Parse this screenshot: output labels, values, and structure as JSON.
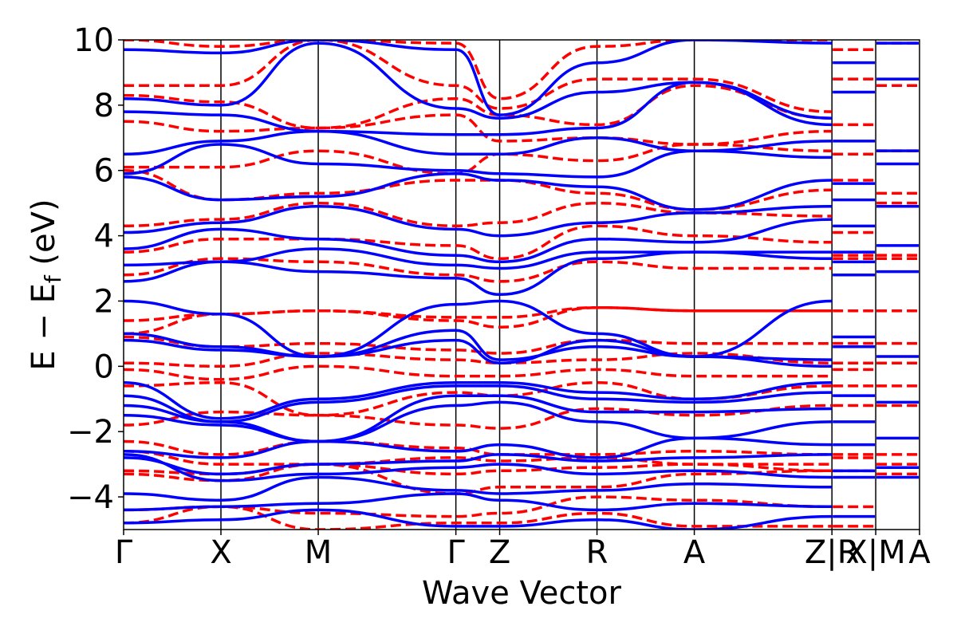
{
  "chart_data": {
    "type": "line",
    "title": "",
    "xlabel": "Wave Vector",
    "ylabel": "E − E",
    "ylabel_sub": "f",
    "ylabel_unit": " (eV)",
    "ylim": [
      -5,
      10
    ],
    "y_ticks": [
      -4,
      -2,
      0,
      2,
      4,
      6,
      8,
      10
    ],
    "y_tick_labels": [
      "−4",
      "−2",
      "0",
      "2",
      "4",
      "6",
      "8",
      "10"
    ],
    "kpath_segments": [
      {
        "points": [
          "Γ",
          "X",
          "M",
          "Γ",
          "Z",
          "R",
          "A",
          "Z"
        ],
        "distances": [
          0,
          0.5,
          1.0,
          1.7071,
          1.9321,
          2.4321,
          2.9321,
          3.6392
        ]
      },
      {
        "points": [
          "R",
          "X"
        ],
        "distances": [
          3.6392,
          3.8642
        ]
      },
      {
        "points": [
          "M",
          "A"
        ],
        "distances": [
          3.8642,
          4.0892
        ]
      }
    ],
    "x_tick_labels": [
      {
        "label": "Γ",
        "x": 0
      },
      {
        "label": "X",
        "x": 0.5
      },
      {
        "label": "M",
        "x": 1.0
      },
      {
        "label": "Γ",
        "x": 1.7071
      },
      {
        "label": "Z",
        "x": 1.9321
      },
      {
        "label": "R",
        "x": 2.4321
      },
      {
        "label": "A",
        "x": 2.9321
      },
      {
        "label": "Z|R",
        "x": 3.6392
      },
      {
        "label": "X|M",
        "x": 3.8642
      },
      {
        "label": "A",
        "x": 4.0892
      }
    ],
    "grid": false,
    "legend": "none",
    "series": [
      {
        "style": "solid",
        "color": "#0000ff",
        "bands": [
          [
            -4.8,
            -4.7,
            -4.4,
            -4.9,
            -4.9,
            -4.7,
            -5.0,
            -4.6
          ],
          [
            -4.4,
            -4.3,
            -4.2,
            -3.9,
            -4.1,
            -4.4,
            -4.2,
            -4.3
          ],
          [
            -3.9,
            -4.1,
            -3.4,
            -3.8,
            -3.9,
            -3.8,
            -3.6,
            -3.7
          ],
          [
            -2.7,
            -3.5,
            -3.3,
            -3.1,
            -3.0,
            -3.3,
            -3.2,
            -3.4
          ],
          [
            -2.8,
            -3.3,
            -3.0,
            -2.9,
            -2.7,
            -2.9,
            -2.8,
            -2.7
          ],
          [
            -2.6,
            -2.8,
            -2.3,
            -2.6,
            -2.4,
            -2.8,
            -2.2,
            -2.4
          ],
          [
            -1.5,
            -1.8,
            -2.3,
            -1.2,
            -1.1,
            -1.7,
            -2.2,
            -1.7
          ],
          [
            -1.2,
            -1.7,
            -2.3,
            -0.9,
            -0.9,
            -1.4,
            -1.4,
            -1.3
          ],
          [
            -0.9,
            -1.7,
            -1.1,
            -0.6,
            -0.6,
            -1.0,
            -1.1,
            -0.8
          ],
          [
            -0.5,
            -1.6,
            -1.0,
            -0.5,
            -0.5,
            -0.8,
            -1.0,
            -0.5
          ],
          [
            0.8,
            0.5,
            0.3,
            0.8,
            0.1,
            0.8,
            0.3,
            0.0
          ],
          [
            1.0,
            0.6,
            0.3,
            1.1,
            0.2,
            0.6,
            0.3,
            0.2
          ],
          [
            2.0,
            1.6,
            0.3,
            1.9,
            2.0,
            1.0,
            0.3,
            2.0
          ],
          [
            2.6,
            3.2,
            2.9,
            2.7,
            2.2,
            3.3,
            3.5,
            3.3
          ],
          [
            3.1,
            3.2,
            3.6,
            3.1,
            3.0,
            3.5,
            3.5,
            3.5
          ],
          [
            3.6,
            4.2,
            3.9,
            3.4,
            3.2,
            3.9,
            3.8,
            4.5
          ],
          [
            4.1,
            4.4,
            4.9,
            4.2,
            4.0,
            4.4,
            4.7,
            4.9
          ],
          [
            5.8,
            5.1,
            5.2,
            5.9,
            5.7,
            5.5,
            4.8,
            5.7
          ],
          [
            5.9,
            6.8,
            6.2,
            6.0,
            5.9,
            5.8,
            6.6,
            6.4
          ],
          [
            6.5,
            6.9,
            7.2,
            6.5,
            6.5,
            7.0,
            6.6,
            6.9
          ],
          [
            7.8,
            7.7,
            7.2,
            7.1,
            7.1,
            7.3,
            8.7,
            7.4
          ],
          [
            8.2,
            8.0,
            9.9,
            7.9,
            7.6,
            8.4,
            8.7,
            7.6
          ],
          [
            9.7,
            9.6,
            10.0,
            9.7,
            7.7,
            9.3,
            10.0,
            9.9
          ]
        ]
      },
      {
        "style": "dashed",
        "color": "#ff0000",
        "bands": [
          [
            -4.8,
            -4.3,
            -5.0,
            -4.8,
            -4.8,
            -4.5,
            -4.9,
            -4.9
          ],
          [
            -4.4,
            -4.3,
            -4.5,
            -4.6,
            -4.5,
            -4.0,
            -4.1,
            -4.3
          ],
          [
            -3.3,
            -3.5,
            -3.0,
            -3.9,
            -3.7,
            -3.7,
            -3.3,
            -3.2
          ],
          [
            -3.2,
            -3.3,
            -3.0,
            -3.3,
            -3.2,
            -3.1,
            -3.0,
            -3.2
          ],
          [
            -2.6,
            -3.0,
            -3.0,
            -2.8,
            -2.9,
            -2.8,
            -3.0,
            -3.0
          ],
          [
            -2.3,
            -2.7,
            -2.3,
            -2.5,
            -2.7,
            -2.7,
            -2.6,
            -2.7
          ],
          [
            -1.8,
            -1.4,
            -1.5,
            -1.8,
            -1.9,
            -1.3,
            -1.5,
            -1.2
          ],
          [
            -0.6,
            -0.5,
            -1.5,
            -0.8,
            -0.9,
            -0.5,
            -1.0,
            -0.6
          ],
          [
            -0.1,
            -0.4,
            0.0,
            -0.3,
            -0.3,
            -0.1,
            -0.3,
            -0.3
          ],
          [
            0.1,
            0.0,
            0.4,
            0.2,
            0.1,
            0.2,
            0.4,
            0.1
          ],
          [
            0.9,
            0.6,
            0.7,
            0.5,
            0.4,
            0.8,
            0.7,
            0.7
          ],
          [
            1.0,
            1.6,
            1.7,
            1.4,
            1.2,
            1.8,
            1.7,
            1.7
          ],
          [
            1.4,
            1.6,
            1.7,
            1.5,
            1.5,
            1.8,
            1.7,
            1.7
          ],
          [
            2.8,
            3.3,
            3.2,
            2.8,
            2.6,
            3.2,
            3.0,
            3.0
          ],
          [
            3.5,
            3.9,
            3.9,
            3.7,
            3.3,
            4.3,
            4.0,
            3.8
          ],
          [
            4.3,
            4.5,
            5.0,
            4.3,
            4.4,
            5.0,
            4.7,
            4.6
          ],
          [
            6.0,
            5.1,
            5.3,
            5.7,
            5.7,
            5.3,
            4.8,
            5.4
          ],
          [
            6.1,
            6.1,
            6.6,
            5.9,
            6.5,
            6.3,
            6.8,
            6.6
          ],
          [
            7.5,
            7.2,
            7.3,
            7.7,
            6.9,
            7.0,
            6.8,
            7.2
          ],
          [
            8.3,
            8.1,
            7.3,
            8.2,
            7.7,
            7.4,
            8.6,
            7.6
          ],
          [
            8.6,
            8.6,
            10.0,
            8.6,
            7.9,
            8.8,
            8.8,
            7.8
          ],
          [
            10.0,
            9.8,
            10.0,
            9.9,
            8.2,
            9.8,
            10.0,
            10.0
          ]
        ]
      }
    ],
    "short_segment_levels": {
      "solid_RX": [
        -4.6,
        -3.4,
        -3.2,
        -2.4,
        -1.7,
        -0.9,
        0.6,
        0.9,
        2.8,
        3.2,
        3.5,
        4.3,
        5.1,
        5.6,
        6.9,
        8.4,
        9.3
      ],
      "dashed_RX": [
        -4.9,
        -4.3,
        -3.2,
        -2.8,
        -2.7,
        -1.2,
        -0.6,
        -0.1,
        0.1,
        0.7,
        1.7,
        3.3,
        3.4,
        4.1,
        5.7,
        6.5,
        7.4,
        8.8,
        9.7
      ],
      "solid_MA": [
        -3.4,
        -3.1,
        -2.2,
        -1.1,
        0.3,
        2.9,
        3.7,
        4.9,
        6.2,
        6.6,
        8.8,
        9.9
      ],
      "dashed_MA": [
        -3.3,
        -3.0,
        -2.7,
        -1.2,
        -0.6,
        0.1,
        0.7,
        1.7,
        3.3,
        3.4,
        5.0,
        5.3,
        6.6,
        8.6,
        9.9
      ]
    }
  }
}
